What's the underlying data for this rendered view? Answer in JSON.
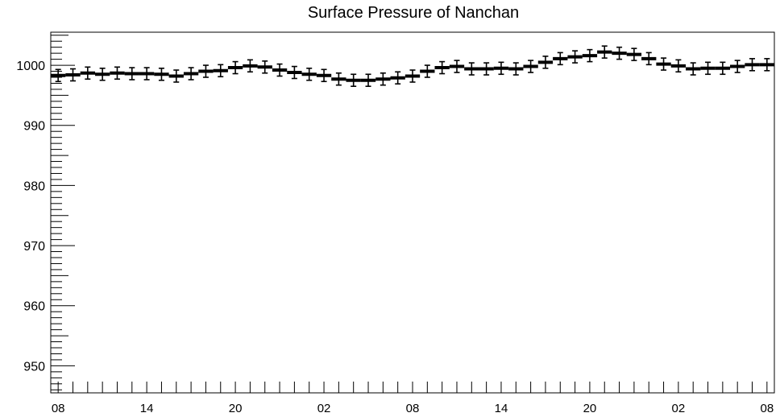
{
  "chart_data": {
    "type": "scatter",
    "title": "Surface Pressure of Nanchan",
    "xlabel": "",
    "ylabel": "",
    "ylim": [
      945.5,
      1005.5
    ],
    "xlim": [
      -0.5,
      48.5
    ],
    "y_ticks": [
      950,
      960,
      970,
      980,
      990,
      1000
    ],
    "x_tick_labels": [
      {
        "x": 0,
        "label": "08"
      },
      {
        "x": 6,
        "label": "14"
      },
      {
        "x": 12,
        "label": "20"
      },
      {
        "x": 18,
        "label": "02"
      },
      {
        "x": 24,
        "label": "08"
      },
      {
        "x": 30,
        "label": "14"
      },
      {
        "x": 36,
        "label": "20"
      },
      {
        "x": 42,
        "label": "02"
      },
      {
        "x": 48,
        "label": "08"
      }
    ],
    "error": 1.0,
    "series": [
      {
        "x": [
          0,
          1,
          2,
          3,
          4,
          5,
          6,
          7,
          8,
          9,
          10,
          11,
          12,
          13,
          14,
          15,
          16,
          17,
          18,
          19,
          20,
          21,
          22,
          23,
          24,
          25,
          26,
          27,
          28,
          29,
          30,
          31,
          32,
          33,
          34,
          35,
          36,
          37,
          38,
          39,
          40,
          41,
          42,
          43,
          44,
          45,
          46,
          47,
          48
        ],
        "values": [
          998.3,
          998.4,
          998.7,
          998.5,
          998.7,
          998.6,
          998.6,
          998.5,
          998.2,
          998.6,
          999.0,
          999.1,
          999.6,
          999.9,
          999.7,
          999.2,
          998.8,
          998.5,
          998.3,
          997.7,
          997.5,
          997.5,
          997.7,
          997.9,
          998.2,
          999.0,
          999.6,
          999.8,
          999.4,
          999.4,
          999.5,
          999.4,
          999.8,
          1000.5,
          1001.1,
          1001.4,
          1001.6,
          1002.2,
          1002.0,
          1001.8,
          1001.1,
          1000.2,
          999.9,
          999.4,
          999.5,
          999.5,
          999.8,
          1000.1,
          1000.1
        ]
      }
    ],
    "grid": false,
    "legend": "none"
  }
}
